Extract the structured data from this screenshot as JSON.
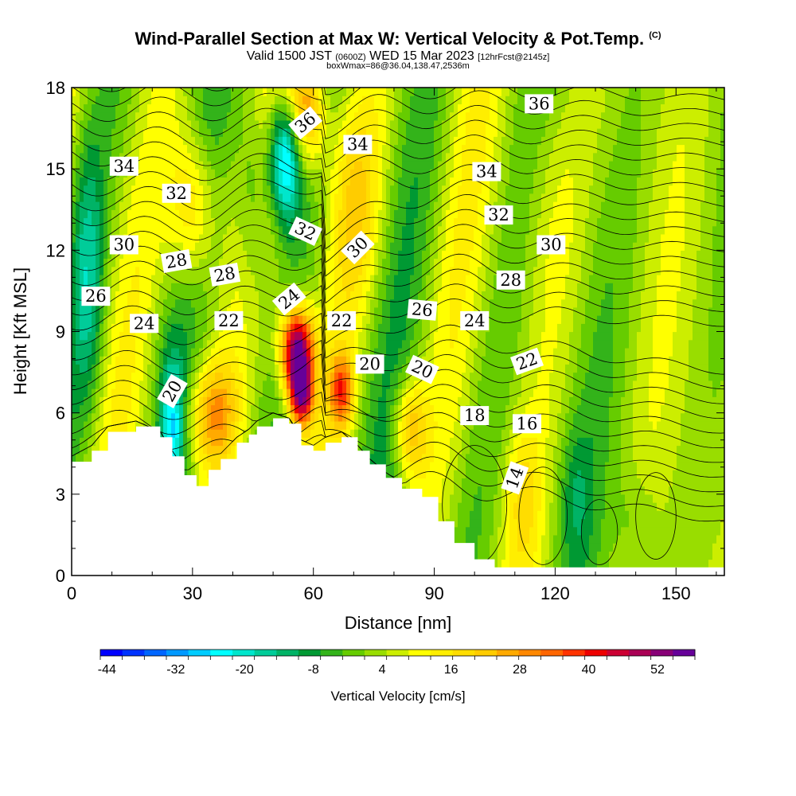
{
  "header": {
    "title": "Wind-Parallel Section at Max W: Vertical Velocity & Pot.Temp.",
    "title_mark": "(C)",
    "valid_prefix": "Valid 1500 JST",
    "valid_utc": "(0600Z)",
    "valid_date": "WED 15 Mar 2023",
    "forecast": "[12hrFcst@2145z]",
    "box_info": "boxWmax=86@36.04,138.47,2536m"
  },
  "chart_data": {
    "type": "heatmap",
    "title": "Wind-Parallel Section at Max W: Vertical Velocity & Pot.Temp.",
    "xlabel": "Distance [nm]",
    "ylabel": "Height [Kft MSL]",
    "xlim": [
      0,
      162
    ],
    "ylim": [
      0,
      18
    ],
    "x_ticks": [
      "0",
      "30",
      "60",
      "90",
      "120",
      "150"
    ],
    "y_ticks": [
      "0",
      "3",
      "6",
      "9",
      "12",
      "15",
      "18"
    ],
    "colorbar": {
      "label": "Vertical Velocity [cm/s]",
      "tick_labels": [
        "-44",
        "-32",
        "-20",
        "-8",
        "4",
        "16",
        "28",
        "40",
        "52"
      ],
      "colors": [
        "#0000ff",
        "#0033ff",
        "#0066ff",
        "#0099ff",
        "#00ccff",
        "#00ffff",
        "#00e6cc",
        "#00cc99",
        "#00b366",
        "#009933",
        "#33b31a",
        "#66cc00",
        "#99dd00",
        "#ccee00",
        "#ffff00",
        "#ffee00",
        "#ffdd00",
        "#ffcc00",
        "#ffaa00",
        "#ff8800",
        "#ff6600",
        "#ff3300",
        "#ee0000",
        "#cc0033",
        "#aa0055",
        "#880077",
        "#660099"
      ]
    },
    "terrain_kft": [
      [
        0,
        4.2
      ],
      [
        5,
        4.6
      ],
      [
        9,
        5.3
      ],
      [
        16,
        5.5
      ],
      [
        22,
        5.1
      ],
      [
        25,
        4.4
      ],
      [
        28,
        3.7
      ],
      [
        31,
        3.3
      ],
      [
        34,
        3.9
      ],
      [
        37,
        4.3
      ],
      [
        41,
        4.9
      ],
      [
        44,
        5.2
      ],
      [
        46,
        5.5
      ],
      [
        50,
        5.8
      ],
      [
        54,
        5.6
      ],
      [
        57,
        4.8
      ],
      [
        60,
        4.6
      ],
      [
        63,
        4.9
      ],
      [
        67,
        5.1
      ],
      [
        71,
        4.6
      ],
      [
        74,
        4.1
      ],
      [
        78,
        3.6
      ],
      [
        82,
        3.2
      ],
      [
        87,
        2.9
      ],
      [
        91,
        2.0
      ],
      [
        95,
        1.2
      ],
      [
        100,
        0.6
      ],
      [
        105,
        0.3
      ],
      [
        162,
        0.3
      ]
    ],
    "w_features": [
      {
        "x": 56,
        "z": 8.3,
        "w": 60,
        "sx": 4,
        "sz": 1.6
      },
      {
        "x": 57,
        "z": 6.6,
        "w": 42,
        "sx": 3,
        "sz": 1.2
      },
      {
        "x": 67,
        "z": 6.8,
        "w": 30,
        "sx": 3,
        "sz": 1.3
      },
      {
        "x": 53,
        "z": 15.5,
        "w": -38,
        "sx": 4,
        "sz": 2.4
      },
      {
        "x": 58,
        "z": 17.2,
        "w": 30,
        "sx": 5,
        "sz": 2.2
      },
      {
        "x": 30,
        "z": 13.5,
        "w": 22,
        "sx": 6,
        "sz": 3
      },
      {
        "x": 35,
        "z": 6,
        "w": 24,
        "sx": 6,
        "sz": 2
      },
      {
        "x": 25,
        "z": 5.5,
        "w": -22,
        "sx": 3,
        "sz": 2.5
      },
      {
        "x": 4,
        "z": 11,
        "w": -16,
        "sx": 4,
        "sz": 5
      },
      {
        "x": 84,
        "z": 5.5,
        "w": 22,
        "sx": 4,
        "sz": 1.8
      },
      {
        "x": 70,
        "z": 14,
        "w": 14,
        "sx": 7,
        "sz": 4
      },
      {
        "x": 45,
        "z": 14,
        "w": -12,
        "sx": 4,
        "sz": 4
      },
      {
        "x": 112,
        "z": 3,
        "w": 10,
        "sx": 4,
        "sz": 2.5
      },
      {
        "x": 125,
        "z": 3,
        "w": -8,
        "sx": 4,
        "sz": 2.5
      },
      {
        "x": 140,
        "z": 2,
        "w": -6,
        "sx": 5,
        "sz": 2
      },
      {
        "x": 118,
        "z": 14,
        "w": 6,
        "sx": 8,
        "sz": 5
      }
    ],
    "contour_labels": [
      {
        "text": "36",
        "x": 58,
        "z": 16.7,
        "angle": -40
      },
      {
        "text": "36",
        "x": 116,
        "z": 17.4,
        "angle": 0
      },
      {
        "text": "34",
        "x": 13,
        "z": 15.1,
        "angle": 0
      },
      {
        "text": "34",
        "x": 71,
        "z": 15.9,
        "angle": 0
      },
      {
        "text": "34",
        "x": 103,
        "z": 14.9,
        "angle": 0
      },
      {
        "text": "32",
        "x": 26,
        "z": 14.1,
        "angle": 0
      },
      {
        "text": "32",
        "x": 58,
        "z": 12.7,
        "angle": 25
      },
      {
        "text": "32",
        "x": 106,
        "z": 13.3,
        "angle": 0
      },
      {
        "text": "30",
        "x": 13,
        "z": 12.2,
        "angle": 0
      },
      {
        "text": "30",
        "x": 71,
        "z": 12.1,
        "angle": -45
      },
      {
        "text": "30",
        "x": 119,
        "z": 12.2,
        "angle": 0
      },
      {
        "text": "28",
        "x": 26,
        "z": 11.6,
        "angle": -10
      },
      {
        "text": "28",
        "x": 38,
        "z": 11.1,
        "angle": -10
      },
      {
        "text": "28",
        "x": 109,
        "z": 10.9,
        "angle": 0
      },
      {
        "text": "26",
        "x": 6,
        "z": 10.3,
        "angle": 0
      },
      {
        "text": "26",
        "x": 87,
        "z": 9.8,
        "angle": 5
      },
      {
        "text": "24",
        "x": 18,
        "z": 9.3,
        "angle": 0
      },
      {
        "text": "24",
        "x": 54,
        "z": 10.2,
        "angle": -40
      },
      {
        "text": "24",
        "x": 100,
        "z": 9.4,
        "angle": 0
      },
      {
        "text": "22",
        "x": 39,
        "z": 9.4,
        "angle": 0
      },
      {
        "text": "22",
        "x": 67,
        "z": 9.4,
        "angle": 0
      },
      {
        "text": "22",
        "x": 113,
        "z": 7.9,
        "angle": -20
      },
      {
        "text": "20",
        "x": 25,
        "z": 6.8,
        "angle": -60
      },
      {
        "text": "20",
        "x": 74,
        "z": 7.8,
        "angle": 0
      },
      {
        "text": "20",
        "x": 87,
        "z": 7.6,
        "angle": 25
      },
      {
        "text": "18",
        "x": 100,
        "z": 5.9,
        "angle": 0
      },
      {
        "text": "16",
        "x": 113,
        "z": 5.6,
        "angle": 0
      },
      {
        "text": "14",
        "x": 110,
        "z": 3.6,
        "angle": -70
      }
    ]
  }
}
